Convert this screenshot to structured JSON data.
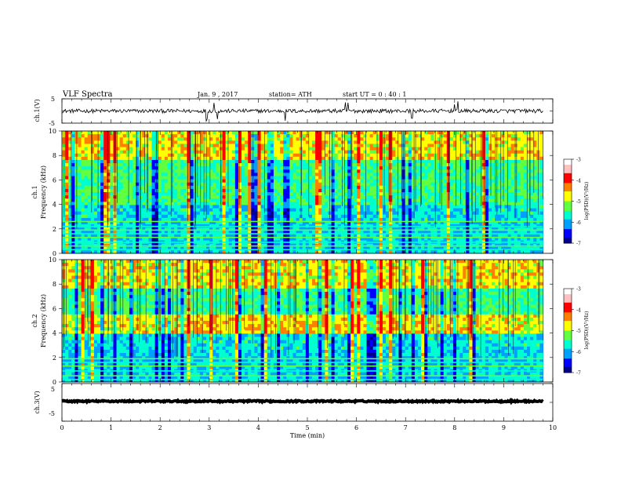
{
  "header": {
    "title": "VLF  Spectra",
    "date": "Jan.  9  , 2017",
    "station": "station= ATH",
    "start": "start  UT  =    0  : 40 : 1"
  },
  "chart_data": [
    {
      "type": "line",
      "name": "ch1-voltage",
      "ylabel": "ch.1(V)",
      "ylim": [
        -5,
        5
      ],
      "yticks": [
        "5",
        "-5"
      ],
      "xlim": [
        0,
        10
      ],
      "baseline": 0.0,
      "spike_times": [
        2.95,
        3.1,
        3.17,
        4.55,
        5.78,
        5.83,
        7.13,
        8.0,
        8.07
      ]
    },
    {
      "type": "heatmap",
      "name": "ch1-spectrogram",
      "ylabel_1": "ch.1",
      "ylabel_2": "Frequency  (kHz)",
      "ylim": [
        0,
        10
      ],
      "yticks": [
        "0",
        "2",
        "4",
        "6",
        "8",
        "10"
      ],
      "xlim": [
        0,
        9.8
      ],
      "colorbar": {
        "label": "log(PSD)(V²/Hz)",
        "range": [
          -7,
          -3
        ],
        "ticks": [
          "-3",
          "-4",
          "-5",
          "-6",
          "-7"
        ]
      },
      "bands_khz": [
        0.3,
        0.6,
        0.9,
        1.3,
        1.6,
        1.9,
        2.2,
        2.6
      ],
      "features": "broadband impulsive sferics above 4 kHz; narrowband transmitter lines below 2.7 kHz"
    },
    {
      "type": "heatmap",
      "name": "ch2-spectrogram",
      "ylabel_1": "ch.2",
      "ylabel_2": "Frequency  (kHz)",
      "ylim": [
        0,
        10
      ],
      "yticks": [
        "0",
        "2",
        "4",
        "6",
        "8",
        "10"
      ],
      "xlim": [
        0,
        9.8
      ],
      "colorbar": {
        "label": "log(PSD)(V²/Hz)",
        "range": [
          -7,
          -3
        ],
        "ticks": [
          "-3",
          "-4",
          "-5",
          "-6",
          "-7"
        ]
      },
      "bands_khz": [
        0.2,
        0.5,
        0.9,
        1.3,
        1.6,
        1.9
      ],
      "features": "broadband impulsive sferics; enhanced band near 4.5 kHz"
    },
    {
      "type": "line",
      "name": "ch3-voltage",
      "ylabel": "ch.3(V)",
      "ylim": [
        -5,
        5
      ],
      "yticks": [
        "5",
        "0",
        "-5"
      ],
      "xlim": [
        0,
        10
      ],
      "baseline": 0.3,
      "spike_times": []
    }
  ],
  "xaxis": {
    "label": "Time  (min)",
    "range": [
      0,
      10
    ],
    "ticks": [
      "0",
      "1",
      "2",
      "3",
      "4",
      "5",
      "6",
      "7",
      "8",
      "9",
      "10"
    ]
  },
  "colors": {
    "colormap": [
      "#00008b",
      "#0000ff",
      "#00a0ff",
      "#00ffd0",
      "#60ff40",
      "#ffff00",
      "#ff8000",
      "#ff0000",
      "#ffc0c0",
      "#ffffff"
    ]
  }
}
